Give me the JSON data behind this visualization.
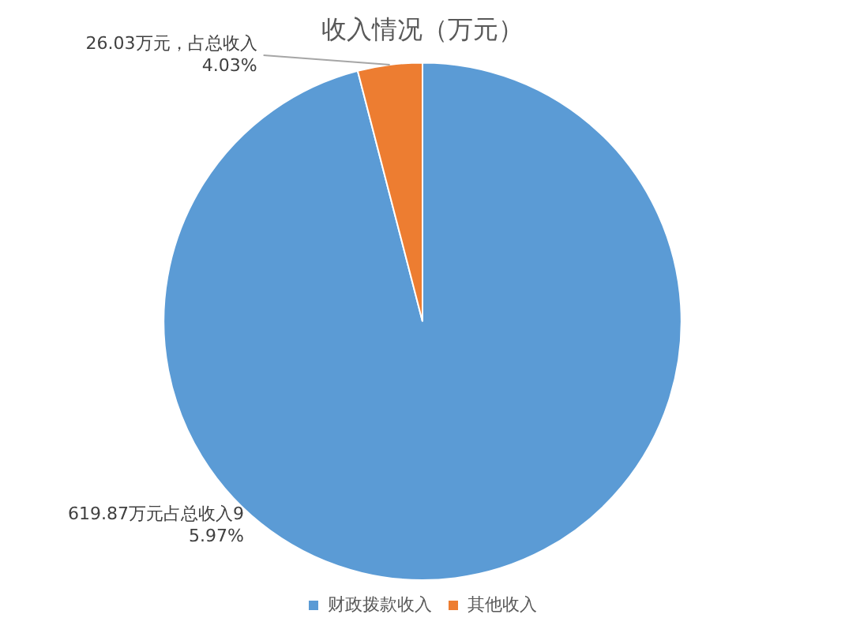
{
  "chart_data": {
    "type": "pie",
    "title": "收入情况（万元）",
    "categories": [
      "财政拨款收入",
      "其他收入"
    ],
    "values": [
      619.87,
      26.03
    ],
    "colors": [
      "#5b9bd5",
      "#ed7d31"
    ],
    "value_labels": [
      "619.87万元占总收入95.97%",
      "26.03万元，占总收入4.03%"
    ],
    "legend": "bottom"
  }
}
